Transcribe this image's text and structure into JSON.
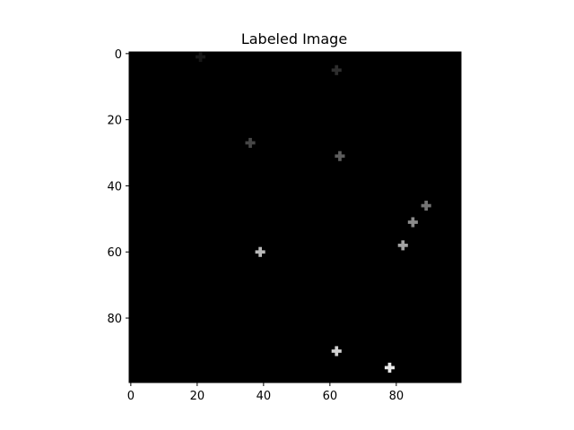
{
  "chart_data": {
    "type": "heatmap",
    "title": "Labeled Image",
    "xlabel": "",
    "ylabel": "",
    "xlim": [
      -0.5,
      99.5
    ],
    "ylim": [
      99.5,
      -0.5
    ],
    "y_inverted": true,
    "colormap": "gray",
    "background_value": 0,
    "value_range": [
      0,
      11
    ],
    "grid": false,
    "x_ticks": [
      0,
      20,
      40,
      60,
      80
    ],
    "y_ticks": [
      0,
      20,
      40,
      60,
      80
    ],
    "x_tick_labels": [
      "0",
      "20",
      "40",
      "60",
      "80"
    ],
    "y_tick_labels": [
      "0",
      "20",
      "40",
      "60",
      "80"
    ],
    "marker_shape": "plus",
    "points": [
      {
        "x": 21,
        "y": 1,
        "label": 1
      },
      {
        "x": 62,
        "y": 5,
        "label": 2
      },
      {
        "x": 36,
        "y": 27,
        "label": 3
      },
      {
        "x": 63,
        "y": 31,
        "label": 4
      },
      {
        "x": 89,
        "y": 46,
        "label": 5
      },
      {
        "x": 85,
        "y": 51,
        "label": 6
      },
      {
        "x": 82,
        "y": 58,
        "label": 7
      },
      {
        "x": 39,
        "y": 60,
        "label": 8
      },
      {
        "x": 62,
        "y": 90,
        "label": 9
      },
      {
        "x": 78,
        "y": 95,
        "label": 10
      }
    ]
  }
}
